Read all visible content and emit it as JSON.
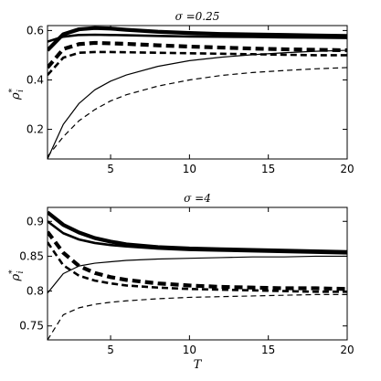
{
  "chart_data": [
    {
      "type": "line",
      "title": "σ =0.25",
      "ylabel": "ρ*i",
      "xlabel": "",
      "xlim": [
        1,
        20
      ],
      "ylim": [
        0.08,
        0.62
      ],
      "xticks": [
        5,
        10,
        15,
        20
      ],
      "yticks": [
        0.2,
        0.4,
        0.6
      ],
      "ytick_labels": [
        "0.2",
        "0.4",
        "0.6"
      ],
      "grid": false,
      "series": [
        {
          "style": "solid",
          "weight": "heavy",
          "x": [
            1,
            2,
            3,
            4,
            5,
            6,
            8,
            10,
            12,
            14,
            16,
            18,
            20
          ],
          "y": [
            0.52,
            0.585,
            0.605,
            0.61,
            0.608,
            0.603,
            0.595,
            0.59,
            0.586,
            0.584,
            0.582,
            0.58,
            0.578
          ]
        },
        {
          "style": "solid",
          "weight": "medium",
          "x": [
            1,
            2,
            3,
            4,
            5,
            6,
            8,
            10,
            12,
            14,
            16,
            18,
            20
          ],
          "y": [
            0.555,
            0.575,
            0.582,
            0.583,
            0.582,
            0.581,
            0.578,
            0.576,
            0.575,
            0.574,
            0.572,
            0.571,
            0.57
          ]
        },
        {
          "style": "dashed",
          "weight": "heavy",
          "x": [
            1,
            2,
            3,
            4,
            5,
            6,
            8,
            10,
            12,
            14,
            16,
            18,
            20
          ],
          "y": [
            0.45,
            0.525,
            0.545,
            0.55,
            0.548,
            0.546,
            0.54,
            0.535,
            0.531,
            0.527,
            0.524,
            0.522,
            0.52
          ]
        },
        {
          "style": "dashed",
          "weight": "medium",
          "x": [
            1,
            2,
            3,
            4,
            5,
            6,
            8,
            10,
            12,
            14,
            16,
            18,
            20
          ],
          "y": [
            0.42,
            0.49,
            0.51,
            0.513,
            0.513,
            0.512,
            0.51,
            0.508,
            0.506,
            0.504,
            0.502,
            0.5,
            0.5
          ]
        },
        {
          "style": "solid",
          "weight": "thin",
          "x": [
            1,
            2,
            3,
            4,
            5,
            6,
            8,
            10,
            12,
            14,
            16,
            18,
            20
          ],
          "y": [
            0.08,
            0.22,
            0.305,
            0.36,
            0.395,
            0.42,
            0.455,
            0.478,
            0.492,
            0.502,
            0.51,
            0.516,
            0.52
          ]
        },
        {
          "style": "dashed",
          "weight": "thin",
          "x": [
            1,
            2,
            3,
            4,
            5,
            6,
            8,
            10,
            12,
            14,
            16,
            18,
            20
          ],
          "y": [
            0.09,
            0.17,
            0.235,
            0.28,
            0.315,
            0.34,
            0.375,
            0.4,
            0.418,
            0.43,
            0.438,
            0.445,
            0.45
          ]
        }
      ]
    },
    {
      "type": "line",
      "title": "σ =4",
      "ylabel": "ρ*i",
      "xlabel": "T",
      "xlim": [
        1,
        20
      ],
      "ylim": [
        0.73,
        0.92
      ],
      "xticks": [
        5,
        10,
        15,
        20
      ],
      "yticks": [
        0.75,
        0.8,
        0.85,
        0.9
      ],
      "ytick_labels": [
        "0.75",
        "0.8",
        "0.85",
        "0.9"
      ],
      "grid": false,
      "series": [
        {
          "style": "solid",
          "weight": "heavy",
          "x": [
            1,
            2,
            3,
            4,
            5,
            6,
            8,
            10,
            12,
            14,
            16,
            18,
            20
          ],
          "y": [
            0.913,
            0.895,
            0.884,
            0.876,
            0.871,
            0.867,
            0.863,
            0.861,
            0.86,
            0.859,
            0.858,
            0.857,
            0.856
          ]
        },
        {
          "style": "solid",
          "weight": "medium",
          "x": [
            1,
            2,
            3,
            4,
            5,
            6,
            8,
            10,
            12,
            14,
            16,
            18,
            20
          ],
          "y": [
            0.9,
            0.883,
            0.874,
            0.869,
            0.866,
            0.864,
            0.861,
            0.859,
            0.858,
            0.857,
            0.856,
            0.855,
            0.854
          ]
        },
        {
          "style": "solid",
          "weight": "thin",
          "x": [
            1,
            2,
            3,
            4,
            5,
            6,
            8,
            10,
            12,
            14,
            16,
            18,
            20
          ],
          "y": [
            0.797,
            0.825,
            0.836,
            0.84,
            0.842,
            0.844,
            0.846,
            0.847,
            0.848,
            0.849,
            0.849,
            0.85,
            0.85
          ]
        },
        {
          "style": "dashed",
          "weight": "heavy",
          "x": [
            1,
            2,
            3,
            4,
            5,
            6,
            8,
            10,
            12,
            14,
            16,
            18,
            20
          ],
          "y": [
            0.885,
            0.855,
            0.836,
            0.826,
            0.82,
            0.816,
            0.811,
            0.808,
            0.806,
            0.805,
            0.804,
            0.804,
            0.803
          ]
        },
        {
          "style": "dashed",
          "weight": "medium",
          "x": [
            1,
            2,
            3,
            4,
            5,
            6,
            8,
            10,
            12,
            14,
            16,
            18,
            20
          ],
          "y": [
            0.87,
            0.837,
            0.822,
            0.815,
            0.811,
            0.808,
            0.805,
            0.803,
            0.802,
            0.801,
            0.8,
            0.799,
            0.799
          ]
        },
        {
          "style": "dashed",
          "weight": "thin",
          "x": [
            1,
            2,
            3,
            4,
            5,
            6,
            8,
            10,
            12,
            14,
            16,
            18,
            20
          ],
          "y": [
            0.73,
            0.766,
            0.776,
            0.781,
            0.784,
            0.786,
            0.789,
            0.791,
            0.792,
            0.793,
            0.794,
            0.795,
            0.795
          ]
        }
      ]
    }
  ]
}
